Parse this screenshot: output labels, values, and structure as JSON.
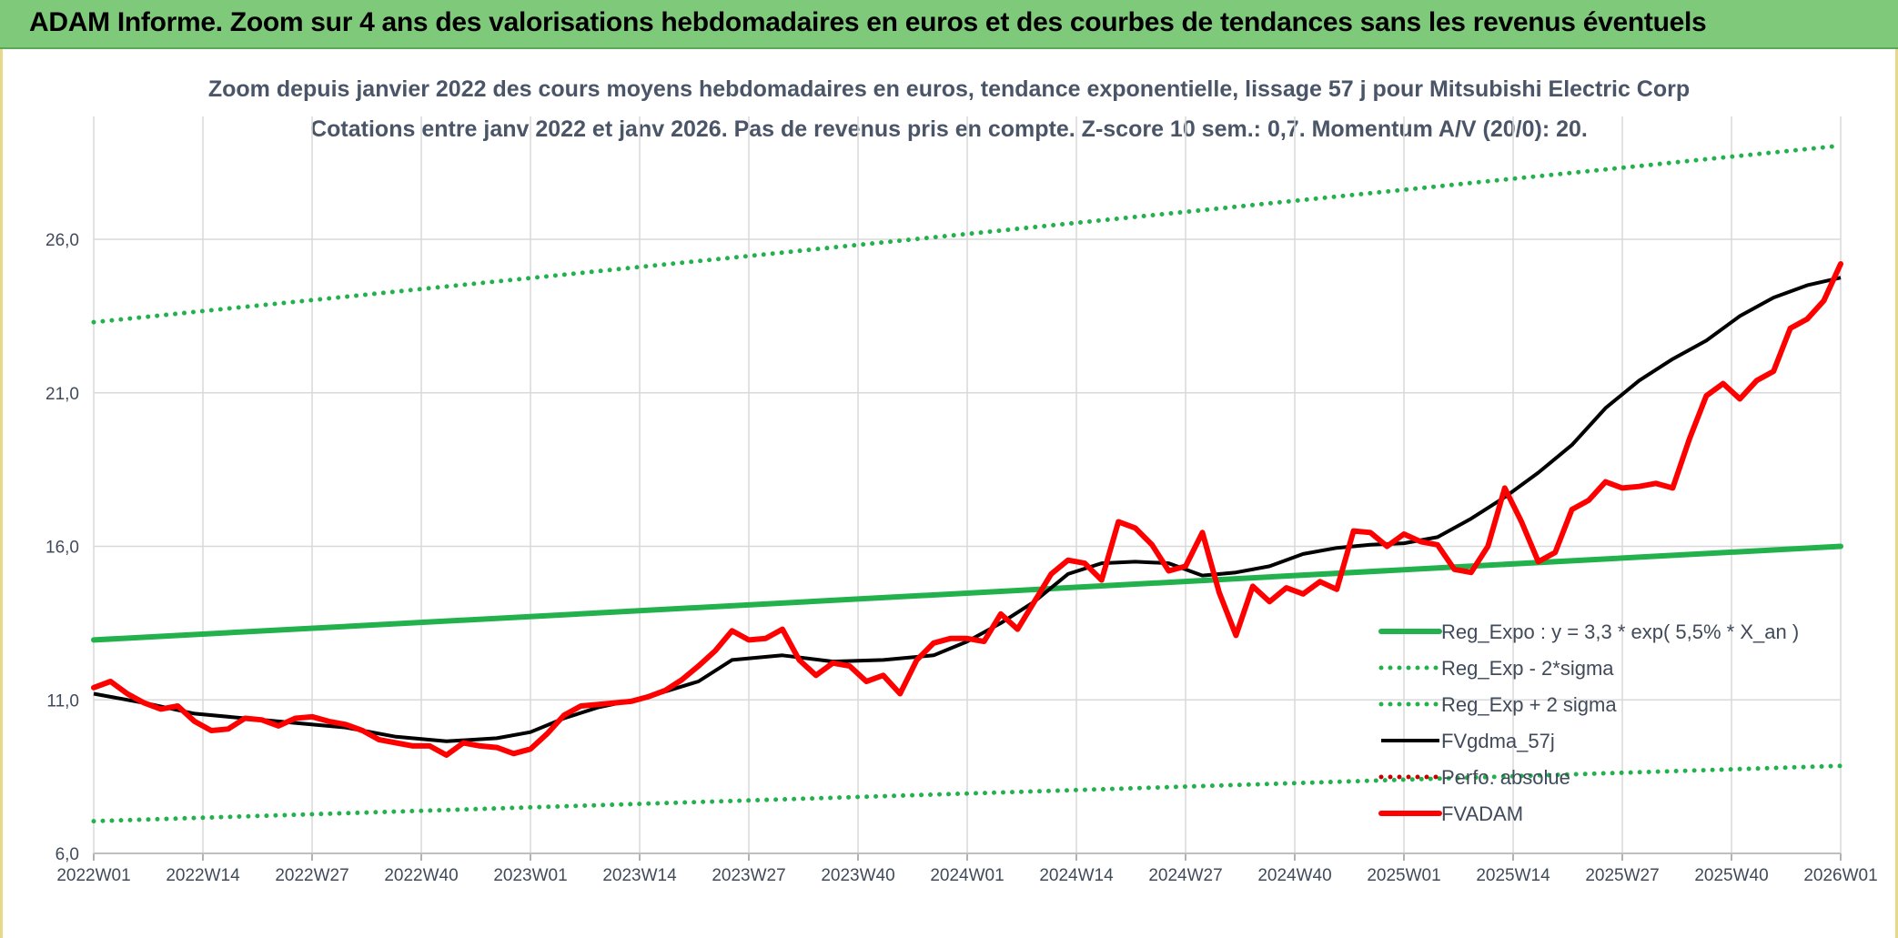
{
  "banner": {
    "title": "ADAM Informe. Zoom sur 4 ans des valorisations hebdomadaires en euros et des courbes de tendances sans les revenus éventuels"
  },
  "chart_data": {
    "type": "line",
    "title": "Zoom depuis janvier 2022 des cours moyens hebdomadaires en euros, tendance exponentielle, lissage 57 j pour Mitsubishi Electric Corp",
    "subtitle": "Cotations entre janv 2022 et janv 2026. Pas de revenus pris en compte. Z-score 10 sem.: 0,7. Momentum A/V (20/0): 20.",
    "ylim": [
      6,
      30
    ],
    "yticks": [
      6,
      11,
      16,
      21,
      26
    ],
    "ytick_labels": [
      "6,0",
      "11,0",
      "16,0",
      "21,0",
      "26,0"
    ],
    "xlim": [
      0,
      208
    ],
    "xticks": [
      0,
      13,
      26,
      39,
      52,
      65,
      78,
      91,
      104,
      117,
      130,
      143,
      156,
      169,
      182,
      195,
      208
    ],
    "xtick_labels": [
      "2022W01",
      "2022W14",
      "2022W27",
      "2022W40",
      "2023W01",
      "2023W14",
      "2023W27",
      "2023W40",
      "2024W01",
      "2024W14",
      "2024W27",
      "2024W40",
      "2025W01",
      "2025W14",
      "2025W27",
      "2025W40",
      "2026W01"
    ],
    "grid": true,
    "legend_position": "bottom-right",
    "series": [
      {
        "name": "Reg_Expo : y = 3,3 * exp( 5,5% *  X_an )",
        "style": "solid-thick",
        "color": "#22b14c",
        "x": [
          0,
          208
        ],
        "values": [
          12.95,
          16.0
        ]
      },
      {
        "name": "Reg_Exp - 2*sigma",
        "style": "dotted",
        "color": "#22b14c",
        "x": [
          0,
          208
        ],
        "values": [
          7.05,
          8.85
        ]
      },
      {
        "name": "Reg_Exp + 2 sigma",
        "style": "dotted",
        "color": "#22b14c",
        "x": [
          0,
          208
        ],
        "values": [
          23.3,
          29.05
        ]
      },
      {
        "name": "FVgdma_57j",
        "style": "solid",
        "color": "#000000",
        "x": [
          0,
          6,
          12,
          18,
          24,
          30,
          36,
          42,
          48,
          52,
          56,
          60,
          66,
          72,
          76,
          82,
          88,
          94,
          100,
          104,
          108,
          112,
          116,
          120,
          124,
          128,
          132,
          136,
          140,
          144,
          148,
          152,
          156,
          160,
          164,
          168,
          172,
          176,
          180,
          184,
          188,
          192,
          196,
          200,
          204,
          208
        ],
        "values": [
          11.2,
          10.9,
          10.55,
          10.4,
          10.25,
          10.1,
          9.8,
          9.65,
          9.75,
          9.95,
          10.4,
          10.75,
          11.1,
          11.6,
          12.3,
          12.45,
          12.25,
          12.3,
          12.45,
          12.9,
          13.5,
          14.2,
          15.1,
          15.45,
          15.5,
          15.45,
          15.05,
          15.15,
          15.35,
          15.75,
          15.95,
          16.05,
          16.1,
          16.3,
          16.9,
          17.6,
          18.4,
          19.3,
          20.5,
          21.4,
          22.1,
          22.7,
          23.5,
          24.1,
          24.5,
          24.75
        ]
      },
      {
        "name": "Perfo. absolue",
        "style": "dotted",
        "color": "#c00000",
        "x": [],
        "values": []
      },
      {
        "name": "FVADAM",
        "style": "solid-thick",
        "color": "#ff0000",
        "x": [
          0,
          2,
          4,
          6,
          8,
          10,
          12,
          14,
          16,
          18,
          20,
          22,
          24,
          26,
          28,
          30,
          32,
          34,
          36,
          38,
          40,
          42,
          44,
          46,
          48,
          50,
          52,
          54,
          56,
          58,
          60,
          62,
          64,
          66,
          68,
          70,
          72,
          74,
          76,
          78,
          80,
          82,
          84,
          86,
          88,
          90,
          92,
          94,
          96,
          98,
          100,
          102,
          104,
          106,
          108,
          110,
          112,
          114,
          116,
          118,
          120,
          122,
          124,
          126,
          128,
          130,
          132,
          134,
          136,
          138,
          140,
          142,
          144,
          146,
          148,
          150,
          152,
          154,
          156,
          158,
          160,
          162,
          164,
          166,
          168,
          170,
          172,
          174,
          176,
          178,
          180,
          182,
          184,
          186,
          188,
          190,
          192,
          194,
          196,
          198,
          200,
          202,
          204,
          206,
          208
        ],
        "values": [
          11.4,
          11.6,
          11.2,
          10.9,
          10.7,
          10.8,
          10.3,
          10.0,
          10.05,
          10.4,
          10.35,
          10.15,
          10.4,
          10.45,
          10.3,
          10.2,
          10.0,
          9.7,
          9.6,
          9.5,
          9.5,
          9.2,
          9.6,
          9.5,
          9.45,
          9.25,
          9.4,
          9.9,
          10.5,
          10.8,
          10.85,
          10.9,
          10.95,
          11.1,
          11.3,
          11.65,
          12.1,
          12.6,
          13.25,
          12.95,
          13.0,
          13.3,
          12.3,
          11.8,
          12.2,
          12.1,
          11.6,
          11.8,
          11.2,
          12.3,
          12.85,
          13.0,
          13.0,
          12.9,
          13.8,
          13.3,
          14.2,
          15.1,
          15.55,
          15.45,
          14.9,
          16.8,
          16.6,
          16.05,
          15.2,
          15.35,
          16.45,
          14.5,
          13.1,
          14.7,
          14.2,
          14.65,
          14.45,
          14.85,
          14.6,
          16.5,
          16.45,
          16.0,
          16.4,
          16.15,
          16.05,
          15.25,
          15.15,
          16.0,
          17.9,
          16.8,
          15.5,
          15.8,
          17.2,
          17.5,
          18.1,
          17.9,
          17.95,
          18.05,
          17.9,
          19.5,
          20.9,
          21.3,
          20.8,
          21.4,
          21.7,
          23.1,
          23.4,
          24.0,
          25.2
        ]
      }
    ]
  }
}
